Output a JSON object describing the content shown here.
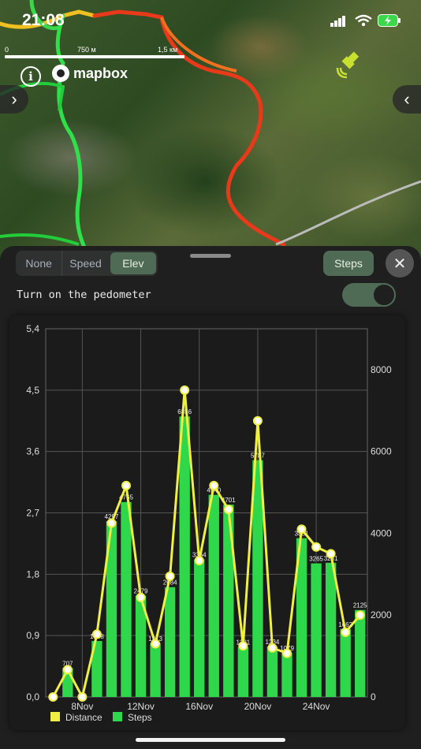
{
  "status": {
    "time": "21:08"
  },
  "map": {
    "scale_labels": [
      "0",
      "750 м",
      "1,5 км"
    ],
    "info_icon": "info-icon",
    "attribution": "mapbox"
  },
  "panel": {
    "segments": [
      {
        "label": "None",
        "active": false
      },
      {
        "label": "Speed",
        "active": false
      },
      {
        "label": "Elev",
        "active": true
      }
    ],
    "steps_button": "Steps",
    "close_icon": "close-icon",
    "pedometer_label": "Turn on the pedometer",
    "pedometer_on": true
  },
  "chart_data": {
    "type": "bar",
    "categories": [
      "6Nov",
      "7Nov",
      "8Nov",
      "9Nov",
      "10Nov",
      "11Nov",
      "12Nov",
      "13Nov",
      "14Nov",
      "15Nov",
      "16Nov",
      "17Nov",
      "18Nov",
      "19Nov",
      "20Nov",
      "21Nov",
      "22Nov",
      "23Nov",
      "24Nov",
      "25Nov",
      "26Nov",
      "27Nov"
    ],
    "x_tick_labels": [
      "8Nov",
      "12Nov",
      "16Nov",
      "20Nov",
      "24Nov"
    ],
    "x_tick_indices": [
      2,
      6,
      10,
      14,
      18
    ],
    "series": [
      {
        "name": "Steps",
        "type": "bar",
        "axis": "right",
        "color": "#2ed84a",
        "values": [
          0,
          707,
          0,
          1368,
          4297,
          4765,
          2479,
          1313,
          2684,
          6856,
          3364,
          4940,
          4701,
          1221,
          5787,
          1234,
          1079,
          3881,
          3265,
          3281,
          1662,
          2125
        ],
        "value_labels": [
          "",
          "707",
          "",
          "1368",
          "4297",
          "4765",
          "2479",
          "1313",
          "2684",
          "6856",
          "3364",
          "4940",
          "4701",
          "1221",
          "5787",
          "1234",
          "1079",
          "3881",
          "3265",
          "3281",
          "1662",
          "2125"
        ]
      },
      {
        "name": "Distance",
        "type": "line",
        "axis": "left",
        "color": "#f0f044",
        "values": [
          0,
          0.4,
          0,
          0.92,
          2.55,
          3.1,
          1.46,
          0.78,
          1.77,
          4.5,
          2.0,
          3.1,
          2.75,
          0.75,
          4.05,
          0.72,
          0.64,
          2.46,
          2.2,
          2.1,
          0.95,
          1.2
        ]
      }
    ],
    "y_left": {
      "ticks": [
        "0,0",
        "0,9",
        "1,8",
        "2,7",
        "3,6",
        "4,5",
        "5,4"
      ],
      "range": [
        0,
        5.4
      ]
    },
    "y_right": {
      "ticks": [
        "0",
        "2000",
        "4000",
        "6000",
        "8000"
      ],
      "range": [
        0,
        9000
      ]
    },
    "legend": {
      "placement": "bottom-left",
      "items": [
        "Distance",
        "Steps"
      ]
    },
    "grid": true
  }
}
